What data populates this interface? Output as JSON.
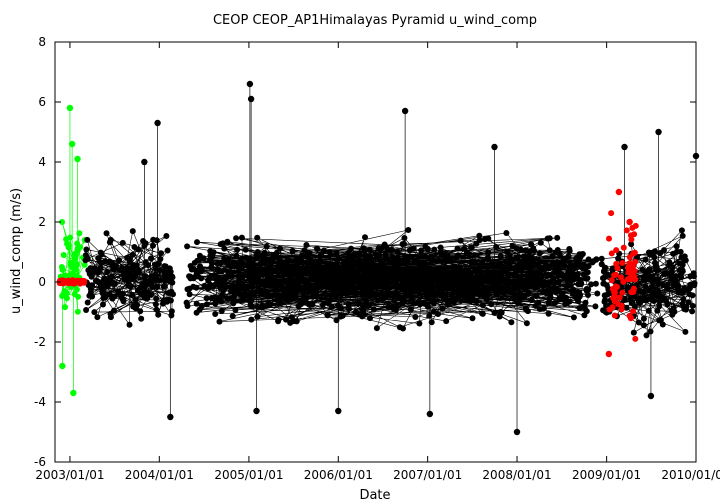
{
  "chart_data": {
    "type": "scatter",
    "title": "CEOP CEOP_AP1Himalayas Pyramid  u_wind_comp",
    "xlabel": "Date",
    "ylabel": "u_wind_comp (m/s)",
    "xlim": [
      "2002/11/01",
      "2010/01/01"
    ],
    "ylim": [
      -6,
      8
    ],
    "x_ticks": [
      "2003/01/01",
      "2004/01/01",
      "2005/01/01",
      "2006/01/01",
      "2007/01/01",
      "2008/01/01",
      "2009/01/01",
      "2010/01/01"
    ],
    "y_ticks": [
      -6,
      -4,
      -2,
      0,
      2,
      4,
      6,
      8
    ],
    "grid": false,
    "legend": "none",
    "colors": {
      "primary": "#000000",
      "secondary": "#00ff00",
      "flagged": "#ff0000"
    },
    "series": [
      {
        "color": "#00ff00",
        "segments": [
          {
            "start": "2002/11/20",
            "end": "2003/03/05",
            "low": -1.5,
            "high": 2.5,
            "extremes": [
              [
                "2003/01/01",
                5.8
              ],
              [
                "2003/01/10",
                4.6
              ],
              [
                "2003/01/15",
                -3.7
              ],
              [
                "2002/12/01",
                -2.8
              ],
              [
                "2003/02/01",
                4.1
              ]
            ]
          }
        ]
      },
      {
        "color": "#000000",
        "segments": [
          {
            "start": "2003/03/05",
            "end": "2004/03/01",
            "low": -1.8,
            "high": 2.0,
            "extremes": [
              [
                "2003/12/25",
                5.3
              ],
              [
                "2004/02/15",
                -4.5
              ],
              [
                "2003/11/01",
                4.0
              ]
            ]
          },
          {
            "start": "2004/04/20",
            "end": "2008/11/25",
            "low": -1.8,
            "high": 2.0,
            "extremes": [
              [
                "2005/01/05",
                6.6
              ],
              [
                "2005/01/10",
                6.1
              ],
              [
                "2005/02/01",
                -4.3
              ],
              [
                "2006/01/01",
                -4.3
              ],
              [
                "2006/10/01",
                5.7
              ],
              [
                "2007/01/10",
                -4.4
              ],
              [
                "2007/10/01",
                4.5
              ],
              [
                "2008/01/01",
                -5.0
              ]
            ]
          },
          {
            "start": "2008/12/10",
            "end": "2010/01/01",
            "low": -2.2,
            "high": 2.0,
            "extremes": [
              [
                "2009/03/15",
                4.5
              ],
              [
                "2009/08/01",
                5.0
              ],
              [
                "2009/07/01",
                -3.8
              ],
              [
                "2010/01/01",
                4.2
              ]
            ]
          }
        ]
      },
      {
        "color": "#ff0000",
        "segments": [
          {
            "start": "2002/11/20",
            "end": "2003/03/01",
            "low": -0.1,
            "high": 0.1,
            "extremes": []
          },
          {
            "start": "2009/01/10",
            "end": "2009/05/01",
            "low": -2.4,
            "high": 3.0,
            "extremes": [
              [
                "2009/02/20",
                3.0
              ],
              [
                "2009/01/10",
                -2.4
              ],
              [
                "2009/04/05",
                2.0
              ],
              [
                "2009/04/10",
                -1.2
              ]
            ]
          }
        ]
      }
    ]
  }
}
